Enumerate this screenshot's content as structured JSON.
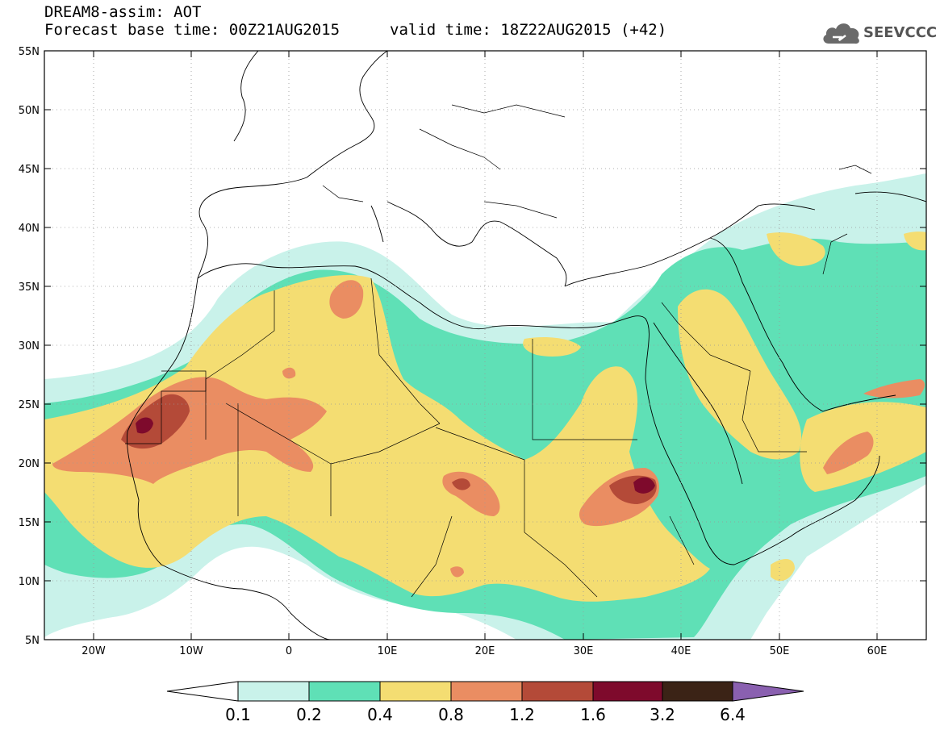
{
  "header": {
    "title": "DREAM8-assim: AOT",
    "base_time": "Forecast base time: 00Z21AUG2015",
    "valid_time": "valid time: 18Z22AUG2015 (+42)",
    "logo_text": "SEEVCCC",
    "logo_icon": "cloud-icon"
  },
  "map": {
    "lat_labels": [
      "55N",
      "50N",
      "45N",
      "40N",
      "35N",
      "30N",
      "25N",
      "20N",
      "15N",
      "10N",
      "5N"
    ],
    "lon_labels": [
      "20W",
      "10W",
      "0",
      "10E",
      "20E",
      "30E",
      "40E",
      "50E",
      "60E"
    ],
    "lat_range": [
      5,
      55
    ],
    "lon_range": [
      -25,
      65
    ],
    "grid": "dotted"
  },
  "colorbar": {
    "labels": [
      "0.1",
      "0.2",
      "0.4",
      "0.8",
      "1.2",
      "1.6",
      "3.2",
      "6.4"
    ],
    "colors": [
      "#ffffff",
      "#c9f2ea",
      "#5fe0b6",
      "#f4dd72",
      "#ea8d62",
      "#b44a38",
      "#7e0a2c",
      "#3b2316",
      "#8a60b0"
    ]
  }
}
